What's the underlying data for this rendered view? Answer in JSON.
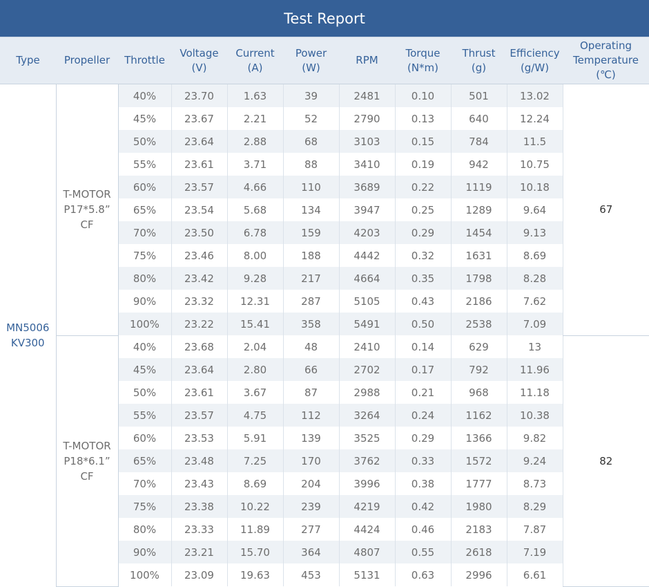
{
  "title": "Test Report",
  "headers": {
    "type": "Type",
    "propeller": "Propeller",
    "throttle": "Throttle",
    "voltage": [
      "Voltage",
      "(V)"
    ],
    "current": [
      "Current",
      "(A)"
    ],
    "power": [
      "Power",
      "(W)"
    ],
    "rpm": "RPM",
    "torque": [
      "Torque",
      "(N*m)"
    ],
    "thrust": [
      "Thrust",
      "(g)"
    ],
    "efficiency": [
      "Efficiency",
      "(g/W)"
    ],
    "temperature": [
      "Operating",
      "Temperature",
      "(℃)"
    ]
  },
  "motor": [
    "MN5006",
    "KV300"
  ],
  "groups": [
    {
      "propeller": [
        "T-MOTOR",
        "P17*5.8” CF"
      ],
      "temperature": "67",
      "rows": [
        [
          "40%",
          "23.70",
          "1.63",
          "39",
          "2481",
          "0.10",
          "501",
          "13.02"
        ],
        [
          "45%",
          "23.67",
          "2.21",
          "52",
          "2790",
          "0.13",
          "640",
          "12.24"
        ],
        [
          "50%",
          "23.64",
          "2.88",
          "68",
          "3103",
          "0.15",
          "784",
          "11.5"
        ],
        [
          "55%",
          "23.61",
          "3.71",
          "88",
          "3410",
          "0.19",
          "942",
          "10.75"
        ],
        [
          "60%",
          "23.57",
          "4.66",
          "110",
          "3689",
          "0.22",
          "1119",
          "10.18"
        ],
        [
          "65%",
          "23.54",
          "5.68",
          "134",
          "3947",
          "0.25",
          "1289",
          "9.64"
        ],
        [
          "70%",
          "23.50",
          "6.78",
          "159",
          "4203",
          "0.29",
          "1454",
          "9.13"
        ],
        [
          "75%",
          "23.46",
          "8.00",
          "188",
          "4442",
          "0.32",
          "1631",
          "8.69"
        ],
        [
          "80%",
          "23.42",
          "9.28",
          "217",
          "4664",
          "0.35",
          "1798",
          "8.28"
        ],
        [
          "90%",
          "23.32",
          "12.31",
          "287",
          "5105",
          "0.43",
          "2186",
          "7.62"
        ],
        [
          "100%",
          "23.22",
          "15.41",
          "358",
          "5491",
          "0.50",
          "2538",
          "7.09"
        ]
      ]
    },
    {
      "propeller": [
        "T-MOTOR",
        "P18*6.1” CF"
      ],
      "temperature": "82",
      "rows": [
        [
          "40%",
          "23.68",
          "2.04",
          "48",
          "2410",
          "0.14",
          "629",
          "13"
        ],
        [
          "45%",
          "23.64",
          "2.80",
          "66",
          "2702",
          "0.17",
          "792",
          "11.96"
        ],
        [
          "50%",
          "23.61",
          "3.67",
          "87",
          "2988",
          "0.21",
          "968",
          "11.18"
        ],
        [
          "55%",
          "23.57",
          "4.75",
          "112",
          "3264",
          "0.24",
          "1162",
          "10.38"
        ],
        [
          "60%",
          "23.53",
          "5.91",
          "139",
          "3525",
          "0.29",
          "1366",
          "9.82"
        ],
        [
          "65%",
          "23.48",
          "7.25",
          "170",
          "3762",
          "0.33",
          "1572",
          "9.24"
        ],
        [
          "70%",
          "23.43",
          "8.69",
          "204",
          "3996",
          "0.38",
          "1777",
          "8.73"
        ],
        [
          "75%",
          "23.38",
          "10.22",
          "239",
          "4219",
          "0.42",
          "1980",
          "8.29"
        ],
        [
          "80%",
          "23.33",
          "11.89",
          "277",
          "4424",
          "0.46",
          "2183",
          "7.87"
        ],
        [
          "90%",
          "23.21",
          "15.70",
          "364",
          "4807",
          "0.55",
          "2618",
          "7.19"
        ],
        [
          "100%",
          "23.09",
          "19.63",
          "453",
          "5131",
          "0.63",
          "2996",
          "6.61"
        ]
      ]
    }
  ],
  "colors": {
    "title_bar": "#356097",
    "header_bg": "#e6ecf3",
    "header_text": "#36629a",
    "stripe": "#eef2f6"
  }
}
